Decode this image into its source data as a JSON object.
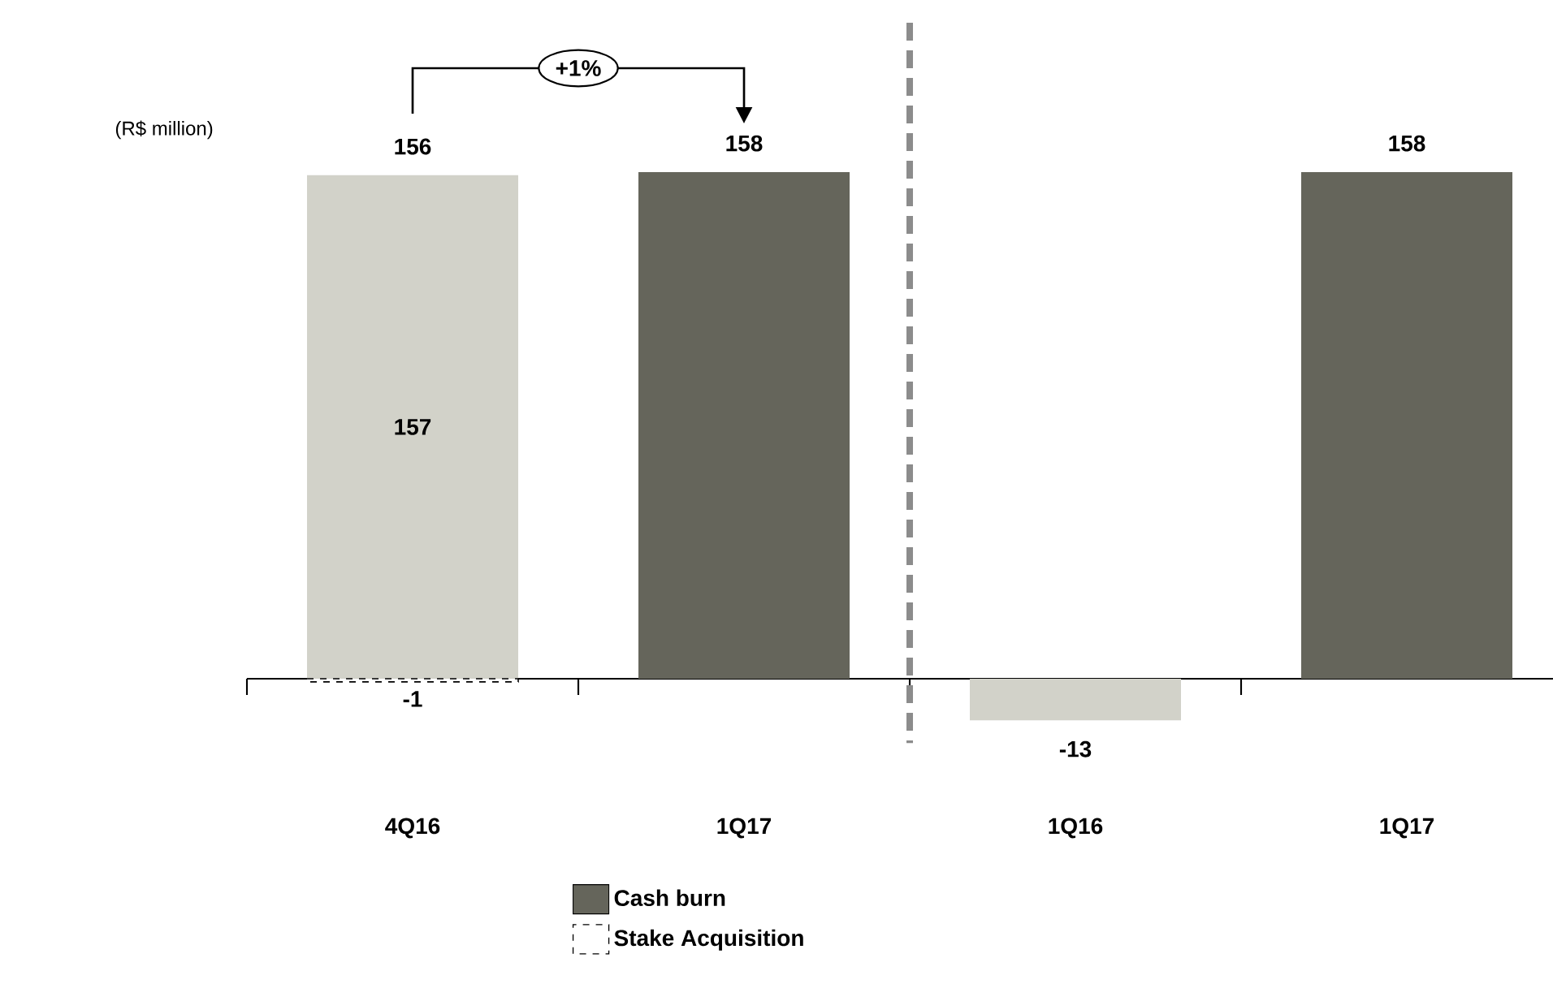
{
  "chart_data": {
    "type": "bar",
    "stacked": true,
    "categories": [
      "4Q16",
      "1Q17",
      "1Q16",
      "1Q17"
    ],
    "series": [
      {
        "name": "Cash burn",
        "color": "#65655b",
        "colors": [
          "#d2d2c9",
          "#65655b",
          "#d2d2c9",
          "#65655b"
        ],
        "values": [
          157,
          158,
          -13,
          158
        ],
        "value_labels": [
          "157",
          null,
          "-13",
          null
        ]
      },
      {
        "name": "Stake Acquisition",
        "color": "#ffffff",
        "line_style": "dashed",
        "values": [
          -1,
          null,
          null,
          null
        ],
        "value_labels": [
          "-1",
          null,
          null,
          null
        ]
      }
    ],
    "totals": [
      "156",
      "158",
      null,
      "158"
    ],
    "annotations": [
      "(R$ million)",
      "+1%"
    ],
    "legend": "bottom"
  }
}
